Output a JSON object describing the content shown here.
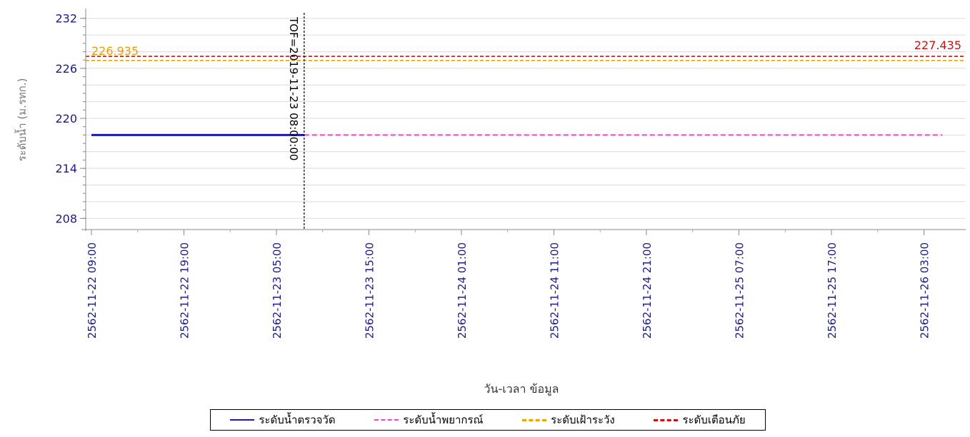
{
  "chart_data": {
    "type": "line",
    "ylabel": "ระดับน้ำ (ม.รทก.)",
    "xlabel": "วัน-เวลา ข้อมูล",
    "ylim": [
      207,
      233
    ],
    "yticks": [
      232,
      226,
      220,
      214,
      208
    ],
    "x_ticks": [
      "2562-11-22 09:00",
      "2562-11-22 19:00",
      "2562-11-23 05:00",
      "2562-11-23 15:00",
      "2562-11-24 01:00",
      "2562-11-24 11:00",
      "2562-11-24 21:00",
      "2562-11-25 07:00",
      "2562-11-25 17:00",
      "2562-11-26 03:00"
    ],
    "series": [
      {
        "name": "ระดับน้ำตรวจวัด",
        "color": "#1a1aaa",
        "style": "solid",
        "x": [
          "2562-11-22 09:00",
          "2562-11-23 08:00"
        ],
        "values": [
          218.0,
          218.0
        ]
      },
      {
        "name": "ระดับน้ำพยากรณ์",
        "color": "#ee44cc",
        "style": "dashed",
        "x": [
          "2562-11-23 08:00",
          "2562-11-26 05:00"
        ],
        "values": [
          218.0,
          218.0
        ]
      },
      {
        "name": "ระดับเฝ้าระวัง",
        "color": "#f0a000",
        "style": "dashed",
        "value": 226.935
      },
      {
        "name": "ระดับเตือนภัย",
        "color": "#cc1111",
        "style": "dashed",
        "value": 227.435
      }
    ],
    "threshold_labels": [
      {
        "text": "226.935",
        "color": "#e8a000"
      },
      {
        "text": "227.435",
        "color": "#cc1111"
      }
    ],
    "annotation": {
      "text": "TOF=2019-11-23 08:00:00",
      "x": "2562-11-23 08:00"
    }
  }
}
